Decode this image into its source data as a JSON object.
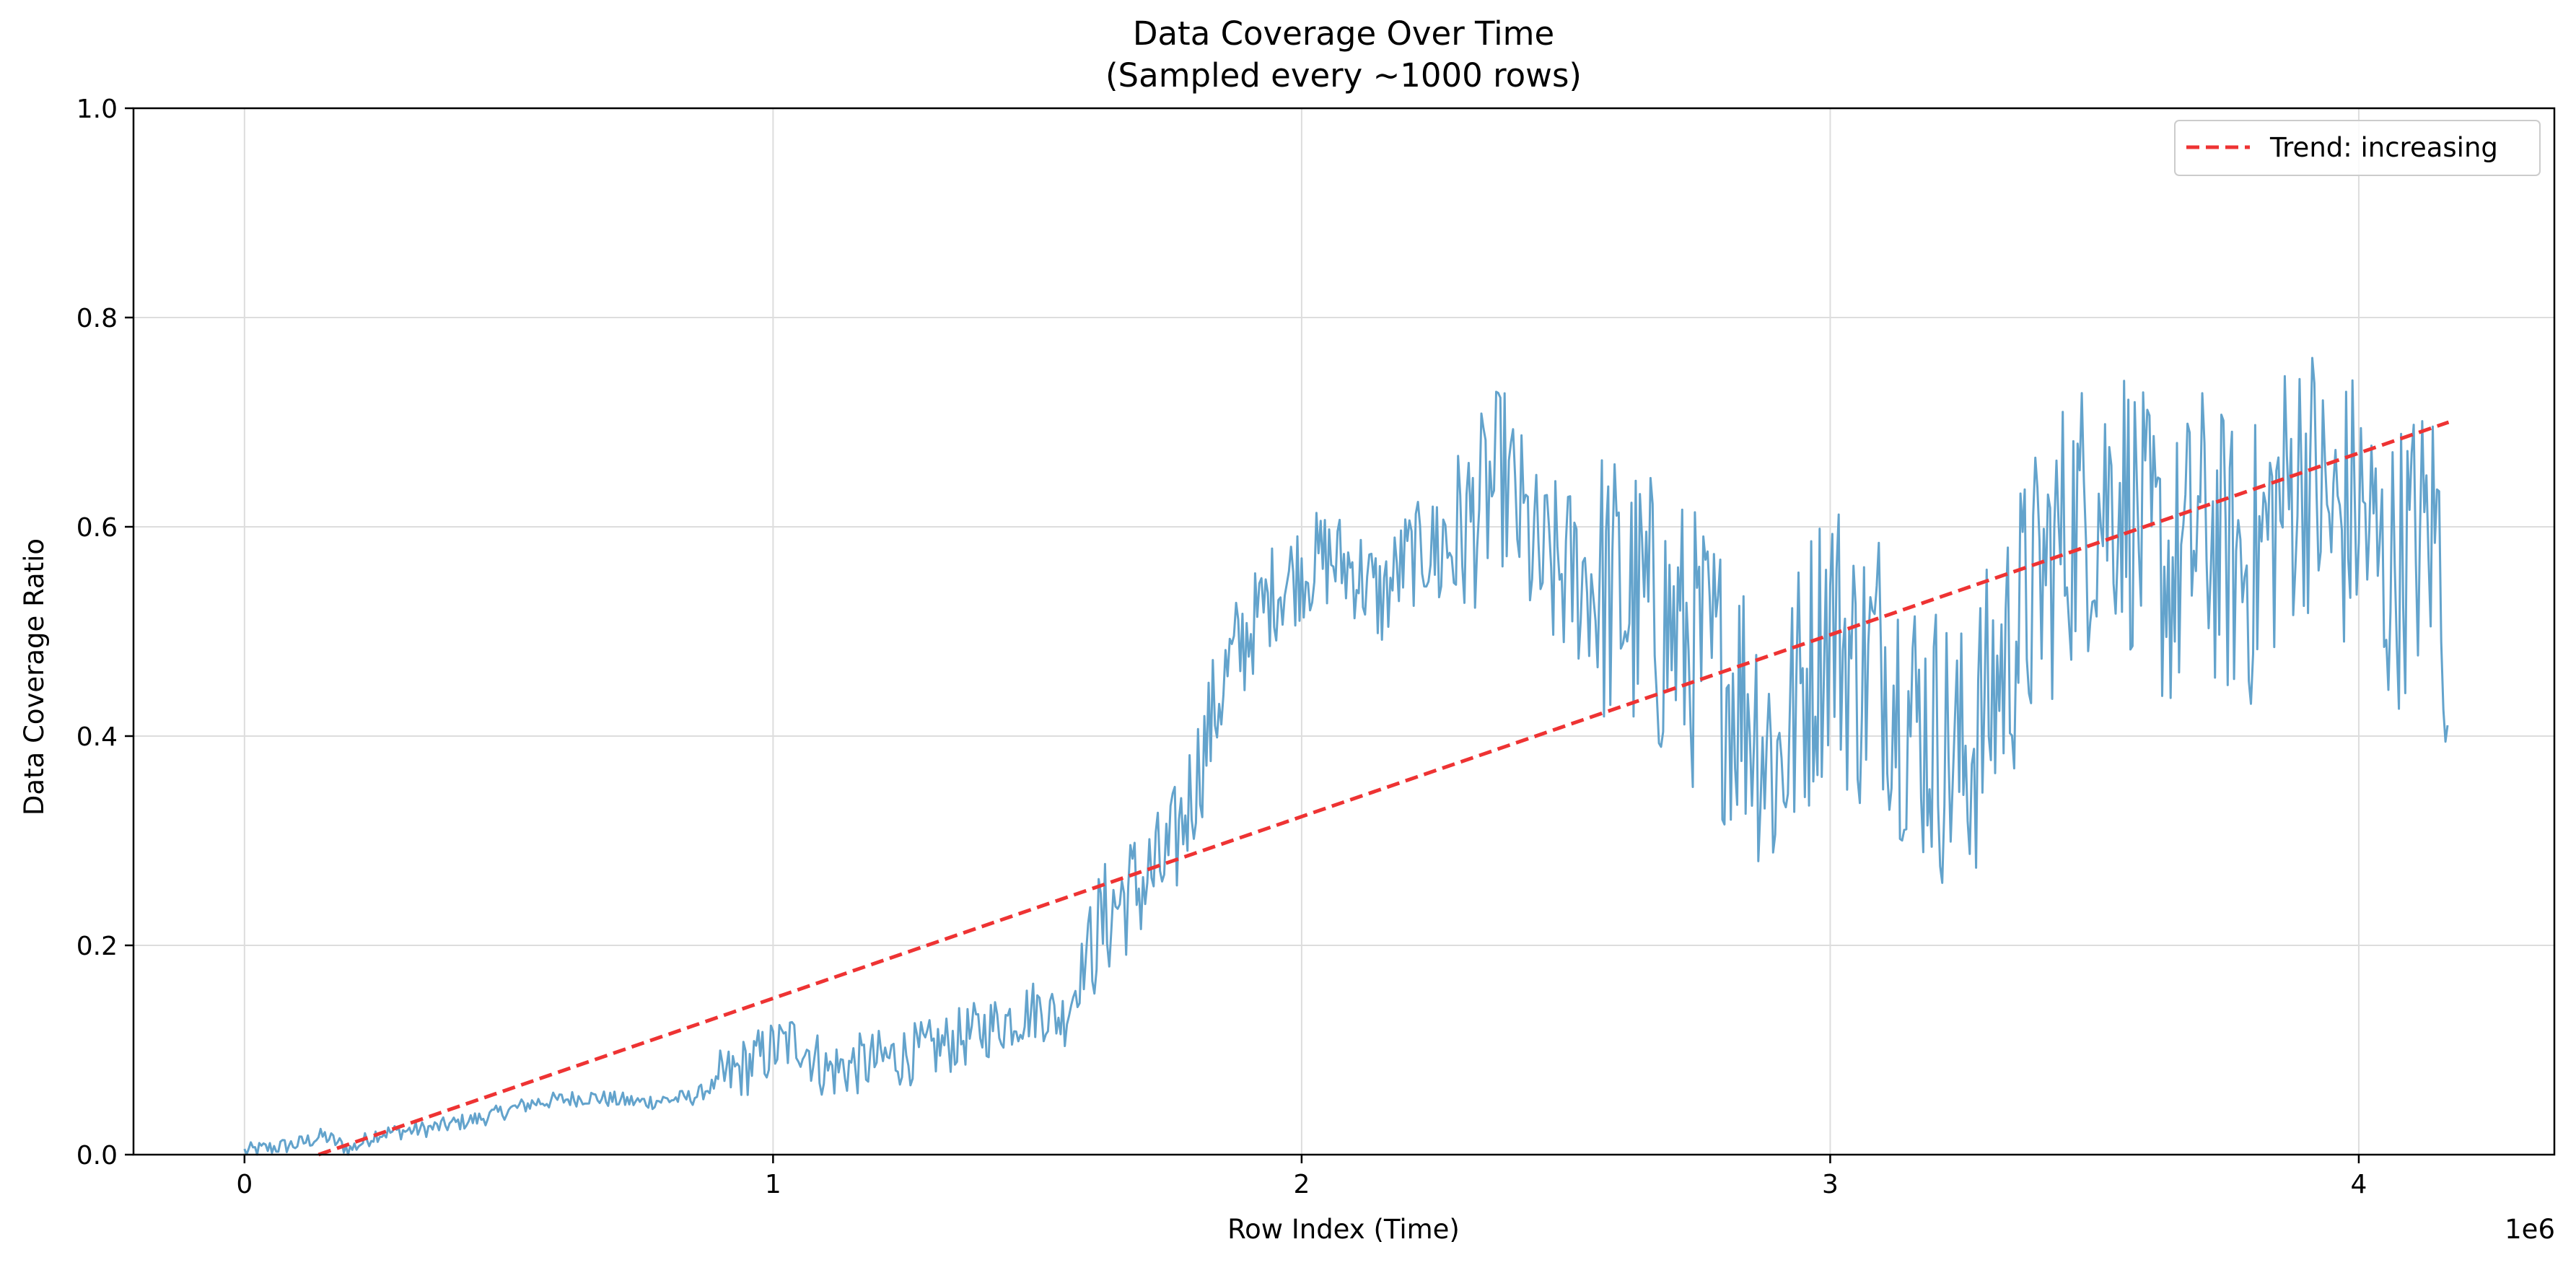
{
  "chart_data": {
    "type": "line",
    "title_line1": "Data Coverage Over Time",
    "title_line2": "(Sampled every ~1000 rows)",
    "xlabel": "Row Index (Time)",
    "ylabel": "Data Coverage Ratio",
    "x_offset_label": "1e6",
    "xlim": [
      -210000,
      4370000
    ],
    "ylim": [
      0.0,
      1.0
    ],
    "x_ticks": [
      0,
      1000000,
      2000000,
      3000000,
      4000000
    ],
    "x_tick_labels": [
      "0",
      "1",
      "2",
      "3",
      "4"
    ],
    "y_ticks": [
      0.0,
      0.2,
      0.4,
      0.6,
      0.8,
      1.0
    ],
    "y_tick_labels": [
      "0.0",
      "0.2",
      "0.4",
      "0.6",
      "0.8",
      "1.0"
    ],
    "grid": true,
    "legend_position": "top-right",
    "colors": {
      "coverage": "#5b9ec9",
      "trend": "#ee3333"
    },
    "series": [
      {
        "name": "",
        "points_approx": [
          [
            0,
            0.003
          ],
          [
            100000,
            0.01
          ],
          [
            150000,
            0.018
          ],
          [
            200000,
            0.005
          ],
          [
            250000,
            0.02
          ],
          [
            350000,
            0.025
          ],
          [
            450000,
            0.035
          ],
          [
            550000,
            0.05
          ],
          [
            650000,
            0.055
          ],
          [
            750000,
            0.05
          ],
          [
            850000,
            0.055
          ],
          [
            950000,
            0.085
          ],
          [
            1000000,
            0.1
          ],
          [
            1050000,
            0.11
          ],
          [
            1100000,
            0.08
          ],
          [
            1200000,
            0.09
          ],
          [
            1300000,
            0.1
          ],
          [
            1400000,
            0.12
          ],
          [
            1500000,
            0.14
          ],
          [
            1550000,
            0.13
          ],
          [
            1600000,
            0.2
          ],
          [
            1650000,
            0.24
          ],
          [
            1700000,
            0.26
          ],
          [
            1750000,
            0.28
          ],
          [
            1800000,
            0.36
          ],
          [
            1850000,
            0.45
          ],
          [
            1900000,
            0.5
          ],
          [
            1950000,
            0.54
          ],
          [
            2000000,
            0.56
          ],
          [
            2050000,
            0.57
          ],
          [
            2100000,
            0.56
          ],
          [
            2150000,
            0.53
          ],
          [
            2200000,
            0.57
          ],
          [
            2300000,
            0.59
          ],
          [
            2380000,
            0.65
          ],
          [
            2450000,
            0.56
          ],
          [
            2550000,
            0.55
          ],
          [
            2650000,
            0.52
          ],
          [
            2750000,
            0.48
          ],
          [
            2850000,
            0.43
          ],
          [
            2900000,
            0.37
          ],
          [
            2950000,
            0.45
          ],
          [
            3000000,
            0.52
          ],
          [
            3050000,
            0.46
          ],
          [
            3100000,
            0.48
          ],
          [
            3150000,
            0.42
          ],
          [
            3200000,
            0.4
          ],
          [
            3250000,
            0.37
          ],
          [
            3300000,
            0.43
          ],
          [
            3350000,
            0.5
          ],
          [
            3400000,
            0.55
          ],
          [
            3450000,
            0.6
          ],
          [
            3500000,
            0.62
          ],
          [
            3550000,
            0.64
          ],
          [
            3600000,
            0.58
          ],
          [
            3650000,
            0.55
          ],
          [
            3700000,
            0.6
          ],
          [
            3750000,
            0.57
          ],
          [
            3800000,
            0.56
          ],
          [
            3850000,
            0.62
          ],
          [
            3900000,
            0.66
          ],
          [
            3950000,
            0.6
          ],
          [
            4000000,
            0.62
          ],
          [
            4050000,
            0.55
          ],
          [
            4100000,
            0.58
          ],
          [
            4150000,
            0.6
          ],
          [
            4170000,
            0.47
          ]
        ]
      },
      {
        "name": "Trend: increasing",
        "style": "dashed",
        "x": [
          140000,
          4170000
        ],
        "y": [
          0.0,
          0.7
        ]
      }
    ]
  }
}
